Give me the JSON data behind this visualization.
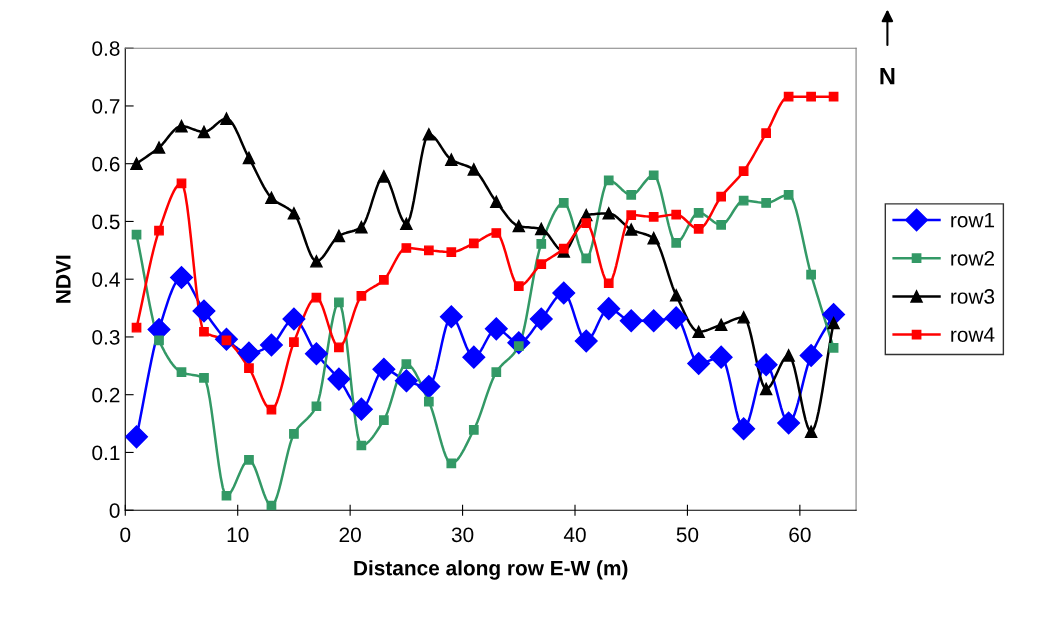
{
  "chart_data": {
    "type": "line",
    "xlabel": "Distance along row E-W (m)",
    "ylabel": "NDVI",
    "x": [
      1,
      3,
      5,
      7,
      9,
      11,
      13,
      15,
      17,
      19,
      21,
      23,
      25,
      27,
      29,
      31,
      33,
      35,
      37,
      39,
      41,
      43,
      45,
      47,
      49,
      51,
      53,
      55,
      57,
      59,
      61,
      63
    ],
    "series": [
      {
        "name": "row1",
        "color": "#0000ff",
        "marker": "diamond",
        "values": [
          0.127,
          0.313,
          0.403,
          0.345,
          0.296,
          0.272,
          0.286,
          0.331,
          0.271,
          0.227,
          0.175,
          0.244,
          0.224,
          0.214,
          0.335,
          0.265,
          0.314,
          0.29,
          0.331,
          0.376,
          0.293,
          0.349,
          0.328,
          0.328,
          0.333,
          0.254,
          0.265,
          0.141,
          0.252,
          0.151,
          0.268,
          0.339
        ]
      },
      {
        "name": "row2",
        "color": "#339966",
        "marker": "square",
        "values": [
          0.477,
          0.294,
          0.239,
          0.229,
          0.025,
          0.087,
          0.008,
          0.132,
          0.18,
          0.36,
          0.112,
          0.156,
          0.253,
          0.188,
          0.081,
          0.139,
          0.239,
          0.284,
          0.461,
          0.532,
          0.436,
          0.571,
          0.546,
          0.58,
          0.463,
          0.515,
          0.494,
          0.536,
          0.532,
          0.546,
          0.408,
          0.281
        ]
      },
      {
        "name": "row3",
        "color": "#000000",
        "marker": "triangle",
        "values": [
          0.6,
          0.628,
          0.665,
          0.655,
          0.678,
          0.61,
          0.541,
          0.514,
          0.431,
          0.475,
          0.49,
          0.578,
          0.496,
          0.651,
          0.607,
          0.59,
          0.534,
          0.492,
          0.487,
          0.448,
          0.511,
          0.514,
          0.486,
          0.471,
          0.372,
          0.309,
          0.321,
          0.334,
          0.21,
          0.268,
          0.136,
          0.324
        ]
      },
      {
        "name": "row4",
        "color": "#ff0000",
        "marker": "square",
        "values": [
          0.316,
          0.484,
          0.566,
          0.309,
          0.294,
          0.246,
          0.174,
          0.291,
          0.368,
          0.282,
          0.371,
          0.399,
          0.454,
          0.45,
          0.447,
          0.462,
          0.48,
          0.388,
          0.426,
          0.453,
          0.497,
          0.393,
          0.511,
          0.508,
          0.512,
          0.487,
          0.543,
          0.587,
          0.653,
          0.716,
          0.716,
          0.716
        ]
      }
    ],
    "xlim": [
      0,
      65
    ],
    "xticks": [
      0,
      10,
      20,
      30,
      40,
      50,
      60
    ],
    "ylim": [
      0,
      0.8
    ],
    "yticks": [
      {
        "value": 0,
        "label": "0"
      },
      {
        "value": 0.1,
        "label": "0.1"
      },
      {
        "value": 0.2,
        "label": "0.2"
      },
      {
        "value": 0.3,
        "label": "0.3"
      },
      {
        "value": 0.4,
        "label": "0.4"
      },
      {
        "value": 0.5,
        "label": "0.5"
      },
      {
        "value": 0.6,
        "label": "0.6"
      },
      {
        "value": 0.7,
        "label": "0.7"
      },
      {
        "value": 0.8,
        "label": "0.8"
      }
    ],
    "grid": false,
    "legend": "right",
    "line_style": "solid",
    "annotations": [
      "N"
    ]
  }
}
